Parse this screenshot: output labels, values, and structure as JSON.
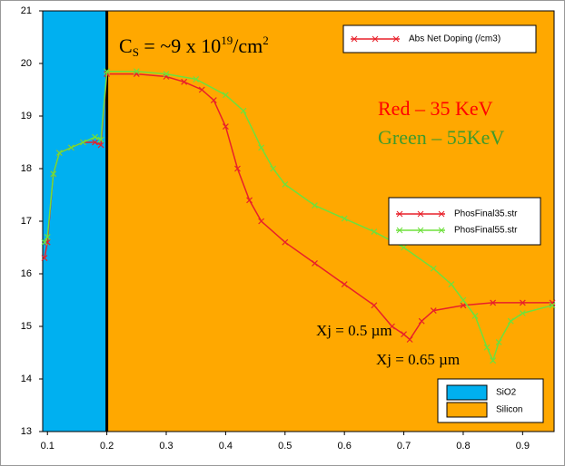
{
  "chart_data": {
    "type": "line",
    "annotation_cs": [
      "C",
      "S",
      " = ~9 x 10",
      "19",
      "/cm",
      "2"
    ],
    "annotation_red": "Red – 35 KeV",
    "annotation_green": "Green – 55KeV",
    "annotation_xj1": "Xj = 0.5 µm",
    "annotation_xj2": "Xj = 0.65 µm",
    "quantity_legend": {
      "name": "Abs Net Doping (/cm3)",
      "color": "#e8202a"
    },
    "regions": [
      {
        "name": "SiO2",
        "color": "#00b0f0",
        "range": [
          0.092,
          0.2
        ]
      },
      {
        "name": "Silicon",
        "color": "#ffa800",
        "range": [
          0.2,
          0.953
        ]
      }
    ],
    "series": [
      {
        "name": "PhosFinal35.str",
        "color": "#e8202a",
        "x": [
          0.095,
          0.1,
          0.11,
          0.12,
          0.14,
          0.16,
          0.18,
          0.19,
          0.2,
          0.25,
          0.3,
          0.33,
          0.36,
          0.38,
          0.4,
          0.42,
          0.44,
          0.46,
          0.5,
          0.55,
          0.6,
          0.65,
          0.68,
          0.7,
          0.71,
          0.73,
          0.75,
          0.8,
          0.85,
          0.9,
          0.95
        ],
        "values": [
          16.3,
          16.6,
          17.9,
          18.3,
          18.4,
          18.5,
          18.5,
          18.45,
          19.8,
          19.8,
          19.75,
          19.65,
          19.5,
          19.3,
          18.8,
          18.0,
          17.4,
          17.0,
          16.6,
          16.2,
          15.8,
          15.4,
          15.0,
          14.85,
          14.75,
          15.1,
          15.3,
          15.4,
          15.45,
          15.45,
          15.45
        ]
      },
      {
        "name": "PhosFinal55.str",
        "color": "#6ee03c",
        "x": [
          0.095,
          0.1,
          0.11,
          0.12,
          0.14,
          0.16,
          0.18,
          0.19,
          0.2,
          0.25,
          0.3,
          0.35,
          0.4,
          0.43,
          0.46,
          0.48,
          0.5,
          0.55,
          0.6,
          0.65,
          0.7,
          0.75,
          0.78,
          0.8,
          0.82,
          0.84,
          0.85,
          0.86,
          0.88,
          0.9,
          0.95
        ],
        "values": [
          16.6,
          16.7,
          17.9,
          18.3,
          18.4,
          18.5,
          18.6,
          18.55,
          19.85,
          19.85,
          19.8,
          19.7,
          19.4,
          19.1,
          18.4,
          18.0,
          17.7,
          17.3,
          17.05,
          16.8,
          16.5,
          16.1,
          15.8,
          15.5,
          15.2,
          14.6,
          14.35,
          14.7,
          15.1,
          15.25,
          15.4
        ]
      }
    ],
    "xlim": [
      0.092,
      0.953
    ],
    "ylim": [
      13,
      21
    ],
    "xticks": [
      0.1,
      0.2,
      0.3,
      0.4,
      0.5,
      0.6,
      0.7,
      0.8,
      0.9
    ],
    "yticks": [
      13,
      14,
      15,
      16,
      17,
      18,
      19,
      20,
      21
    ]
  }
}
